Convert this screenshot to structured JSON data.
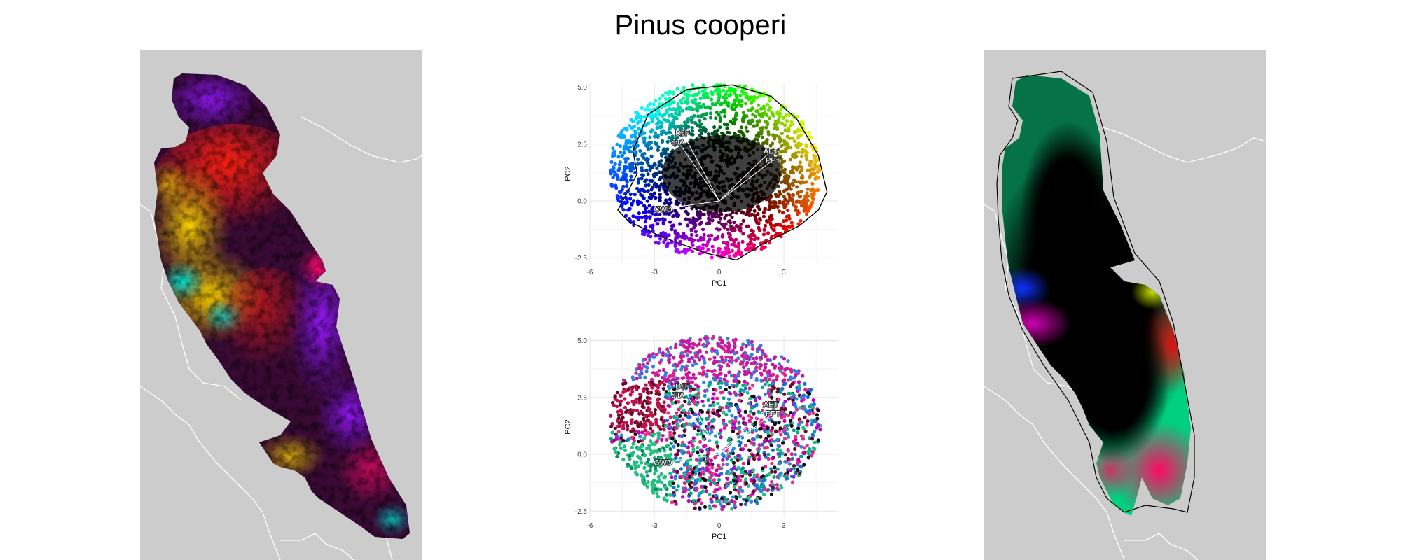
{
  "figure": {
    "title": "Pinus cooperi",
    "colors": {
      "background": "#ffffff",
      "map_background": "#cccccc",
      "border_lines": "#ffffff"
    }
  },
  "panels": {
    "left_map": {
      "description_type": "climate-color raster map",
      "range_outline": false
    },
    "right_map": {
      "description_type": "smoothed climate-color map",
      "range_outline": true
    }
  },
  "chart_data": [
    {
      "type": "scatter",
      "panel": "top",
      "title": "",
      "xlabel": "PC1",
      "ylabel": "PC2",
      "xlim": [
        -6,
        5.5
      ],
      "ylim": [
        -2.8,
        5.2
      ],
      "xticks": [
        -6,
        -3,
        0,
        3
      ],
      "yticks": [
        -2.5,
        0.0,
        2.5,
        5.0
      ],
      "xtick_labels": [
        "-6",
        "-3",
        "0",
        "3"
      ],
      "ytick_labels": [
        "-2.5",
        "0.0",
        "2.5",
        "5.0"
      ],
      "grid": true,
      "point_cloud_hull": true,
      "coloring": "continuous color wheel by position in PC space",
      "vectors": [
        {
          "label": "DJF",
          "x": -1.7,
          "y": 3.0
        },
        {
          "label": "JJA",
          "x": -1.9,
          "y": 2.6
        },
        {
          "label": "AET",
          "x": 2.4,
          "y": 2.2
        },
        {
          "label": "PPT",
          "x": 2.5,
          "y": 1.8
        },
        {
          "label": "CWD",
          "x": -2.6,
          "y": -0.35
        }
      ]
    },
    {
      "type": "scatter",
      "panel": "bottom",
      "title": "",
      "xlabel": "PC1",
      "ylabel": "PC2",
      "xlim": [
        -6,
        5.5
      ],
      "ylim": [
        -2.8,
        5.2
      ],
      "xticks": [
        -6,
        -3,
        0,
        3
      ],
      "yticks": [
        -2.5,
        0.0,
        2.5,
        5.0
      ],
      "xtick_labels": [
        "-6",
        "-3",
        "0",
        "3"
      ],
      "ytick_labels": [
        "-2.5",
        "0.0",
        "2.5",
        "5.0"
      ],
      "grid": true,
      "point_cloud_hull": false,
      "coloring": "cluster colors (pink, magenta, teal, green, blue, dark red, black)",
      "vectors": [
        {
          "label": "DJF",
          "x": -1.7,
          "y": 3.0
        },
        {
          "label": "JJA",
          "x": -1.9,
          "y": 2.6
        },
        {
          "label": "AET",
          "x": 2.4,
          "y": 2.2
        },
        {
          "label": "PPT",
          "x": 2.5,
          "y": 1.8
        },
        {
          "label": "CWD",
          "x": -2.6,
          "y": -0.35
        }
      ]
    }
  ]
}
